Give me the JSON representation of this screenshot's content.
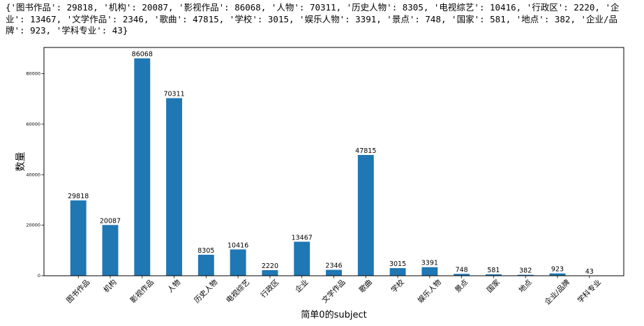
{
  "output": {
    "lines": [
      "{'图书作品': 29818, '机构': 20087, '影视作品': 86068, '人物': 70311, '历史人物': 8305, '电视综艺': 10416, '行政区': 2220, '企",
      "业': 13467, '文学作品': 2346, '歌曲': 47815, '学校': 3015, '娱乐人物': 3391, '景点': 748, '国家': 581, '地点': 382, '企业/品",
      "牌': 923, '学科专业': 43}"
    ]
  },
  "chart_data": {
    "type": "bar",
    "categories": [
      "图书作品",
      "机构",
      "影视作品",
      "人物",
      "历史人物",
      "电视综艺",
      "行政区",
      "企业",
      "文学作品",
      "歌曲",
      "学校",
      "娱乐人物",
      "景点",
      "国家",
      "地点",
      "企业/品牌",
      "学科专业"
    ],
    "values": [
      29818,
      20087,
      86068,
      70311,
      8305,
      10416,
      2220,
      13467,
      2346,
      47815,
      3015,
      3391,
      748,
      581,
      382,
      923,
      43
    ],
    "xlabel": "简单0的subject",
    "ylabel": "数量",
    "ylim": [
      0,
      90371
    ],
    "yticks": [
      0,
      20000,
      40000,
      60000,
      80000
    ],
    "data_labels": true,
    "grid": false,
    "legend": false,
    "bar_color": "#1f77b4",
    "axis_color": "#000000"
  }
}
